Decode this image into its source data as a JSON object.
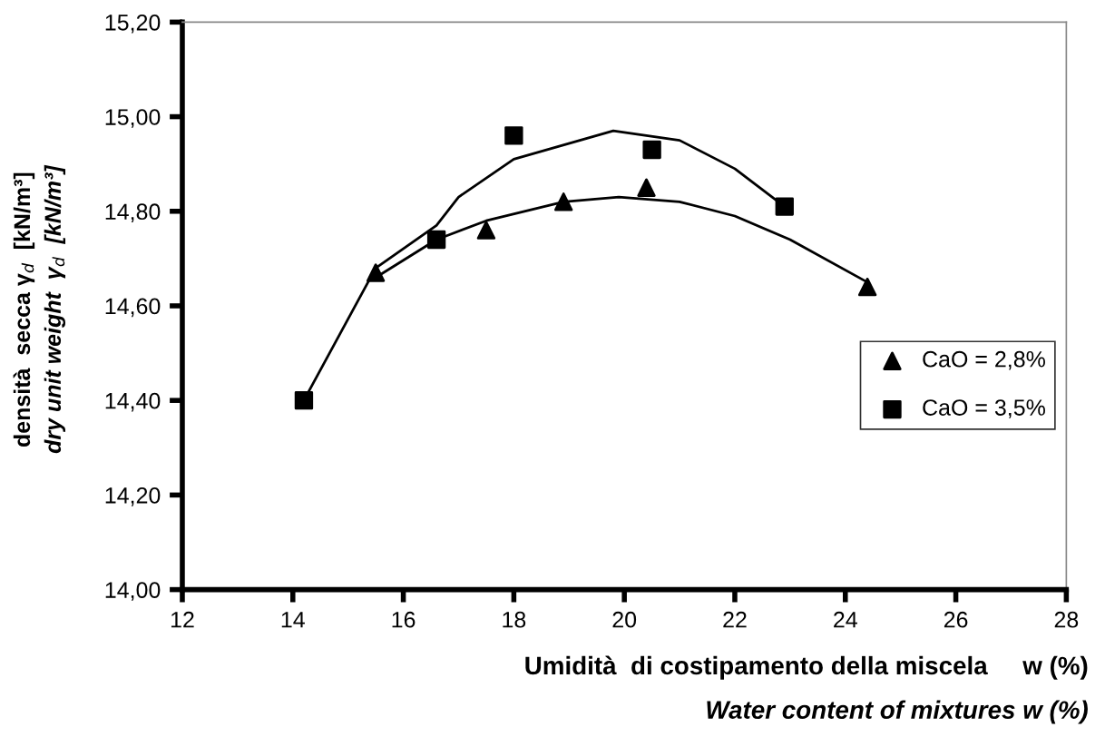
{
  "chart_data": {
    "type": "scatter",
    "xlabel": "Umidità  di costipamento della miscela     w (%)\nWater content of mixtures w (%)",
    "ylabel": "densità  secca γ$_{d}$  [kN/m³]\ndry unit weight  γ$_{d}$  [kN/m³]",
    "xlim": [
      12,
      28
    ],
    "xticks": [
      12,
      14,
      16,
      18,
      20,
      22,
      24,
      26,
      28
    ],
    "ylim": [
      14.0,
      15.2
    ],
    "yticks": [
      {
        "value": 14.0,
        "label": "14,00"
      },
      {
        "value": 14.2,
        "label": "14,20"
      },
      {
        "value": 14.4,
        "label": "14,40"
      },
      {
        "value": 14.6,
        "label": "14,60"
      },
      {
        "value": 14.8,
        "label": "14,80"
      },
      {
        "value": 15.0,
        "label": "15,00"
      },
      {
        "value": 15.2,
        "label": "15,20"
      }
    ],
    "grid": false,
    "legend": "right",
    "series": [
      {
        "name": "CaO = 2,8%",
        "color": "#000000",
        "marker": "triangle",
        "x": [
          15.5,
          17.5,
          18.9,
          20.4,
          24.4
        ],
        "values": [
          14.67,
          14.76,
          14.82,
          14.85,
          14.64
        ]
      },
      {
        "name": "CaO = 3,5%",
        "color": "#000000",
        "marker": "square",
        "x": [
          14.2,
          16.6,
          18.0,
          20.5,
          22.9
        ],
        "values": [
          14.4,
          14.74,
          14.96,
          14.93,
          14.81
        ]
      },
      {
        "type": "line",
        "color": "#000000",
        "x": [
          15.5,
          16.6,
          17.5,
          18.9,
          19.9,
          21.0,
          22.0,
          23.0,
          24.4
        ],
        "values": [
          14.66,
          14.74,
          14.78,
          14.82,
          14.83,
          14.82,
          14.79,
          14.74,
          14.65
        ]
      },
      {
        "type": "line",
        "color": "#000000",
        "x": [
          14.2,
          15.5,
          16.6,
          17.0,
          18.0,
          19.8,
          21.0,
          22.0,
          22.9
        ],
        "values": [
          14.4,
          14.68,
          14.77,
          14.83,
          14.91,
          14.97,
          14.95,
          14.89,
          14.81
        ]
      }
    ]
  }
}
